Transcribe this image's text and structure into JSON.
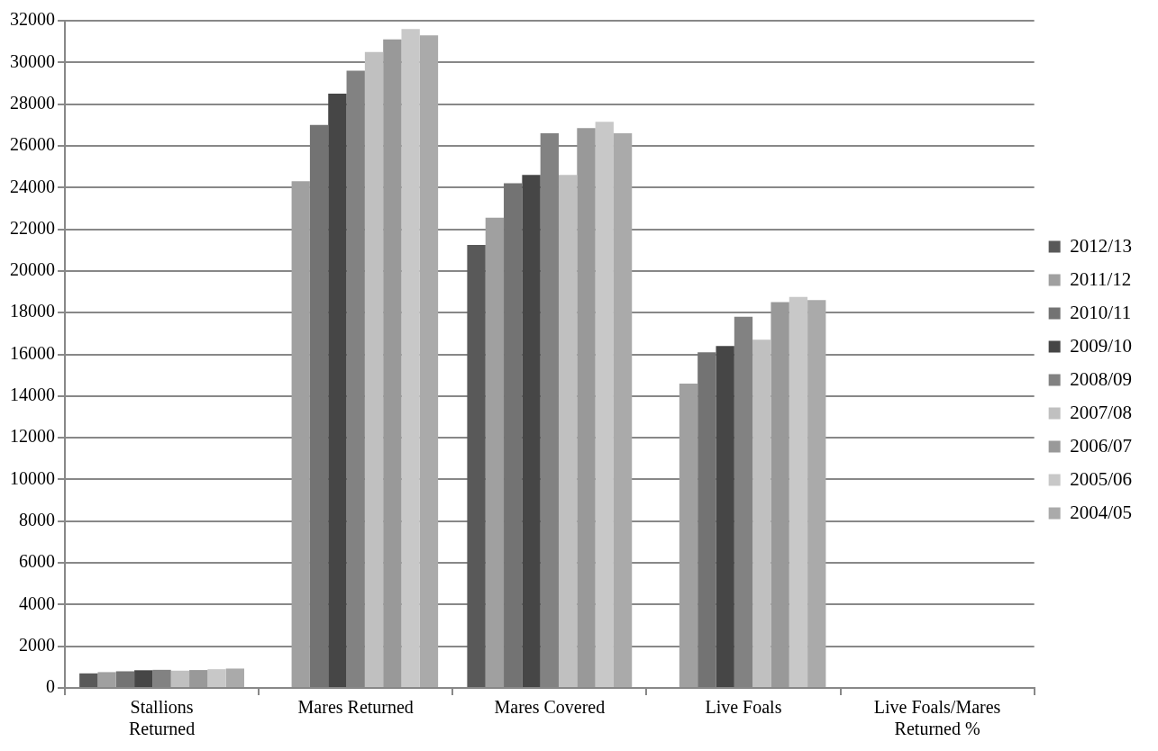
{
  "chart_data": {
    "type": "bar",
    "categories": [
      "Stallions Returned",
      "Mares Returned",
      "Mares Covered",
      "Live Foals",
      "Live Foals/Mares Returned %"
    ],
    "series": [
      {
        "name": "2012/13",
        "color": "#595959",
        "values": [
          700,
          null,
          21250,
          null,
          null
        ]
      },
      {
        "name": "2011/12",
        "color": "#a0a0a0",
        "values": [
          760,
          24300,
          22550,
          14600,
          null
        ]
      },
      {
        "name": "2010/11",
        "color": "#737373",
        "values": [
          800,
          27000,
          24200,
          16100,
          null
        ]
      },
      {
        "name": "2009/10",
        "color": "#464646",
        "values": [
          850,
          28500,
          24600,
          16400,
          null
        ]
      },
      {
        "name": "2008/09",
        "color": "#828282",
        "values": [
          870,
          29600,
          26600,
          17800,
          null
        ]
      },
      {
        "name": "2007/08",
        "color": "#c0c0c0",
        "values": [
          830,
          30500,
          24600,
          16700,
          null
        ]
      },
      {
        "name": "2006/07",
        "color": "#999999",
        "values": [
          860,
          31100,
          26850,
          18500,
          null
        ]
      },
      {
        "name": "2005/06",
        "color": "#c8c8c8",
        "values": [
          900,
          31600,
          27150,
          18750,
          null
        ]
      },
      {
        "name": "2004/05",
        "color": "#aaaaaa",
        "values": [
          930,
          31300,
          26600,
          18600,
          null
        ]
      }
    ],
    "ylim": [
      0,
      32000
    ],
    "yticks": [
      0,
      2000,
      4000,
      6000,
      8000,
      10000,
      12000,
      14000,
      16000,
      18000,
      20000,
      22000,
      24000,
      26000,
      28000,
      30000,
      32000
    ],
    "grid": "y",
    "legend": "right"
  }
}
